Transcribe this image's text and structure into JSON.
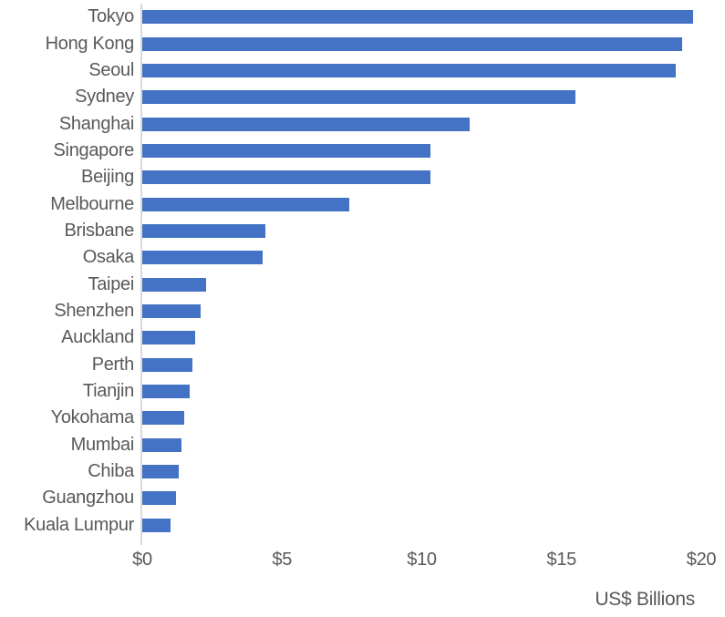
{
  "chart_data": {
    "type": "bar",
    "orientation": "horizontal",
    "categories": [
      "Tokyo",
      "Hong Kong",
      "Seoul",
      "Sydney",
      "Shanghai",
      "Singapore",
      "Beijing",
      "Melbourne",
      "Brisbane",
      "Osaka",
      "Taipei",
      "Shenzhen",
      "Auckland",
      "Perth",
      "Tianjin",
      "Yokohama",
      "Mumbai",
      "Chiba",
      "Guangzhou",
      "Kuala Lumpur"
    ],
    "values": [
      19.7,
      19.3,
      19.1,
      15.5,
      11.7,
      10.3,
      10.3,
      7.4,
      4.4,
      4.3,
      2.3,
      2.1,
      1.9,
      1.8,
      1.7,
      1.5,
      1.4,
      1.3,
      1.2,
      1.0
    ],
    "title": "",
    "xlabel": "US$ Billions",
    "ylabel": "",
    "xlim": [
      0,
      20
    ],
    "xticks": [
      0,
      5,
      10,
      15,
      20
    ],
    "xtick_labels": [
      "$0",
      "$5",
      "$10",
      "$15",
      "$20"
    ],
    "grid": "off",
    "legend": "none",
    "bar_color": "#4472C4",
    "axis_line_color": "#D9D9D9",
    "text_color": "#595959",
    "background": "#FFFFFF"
  }
}
